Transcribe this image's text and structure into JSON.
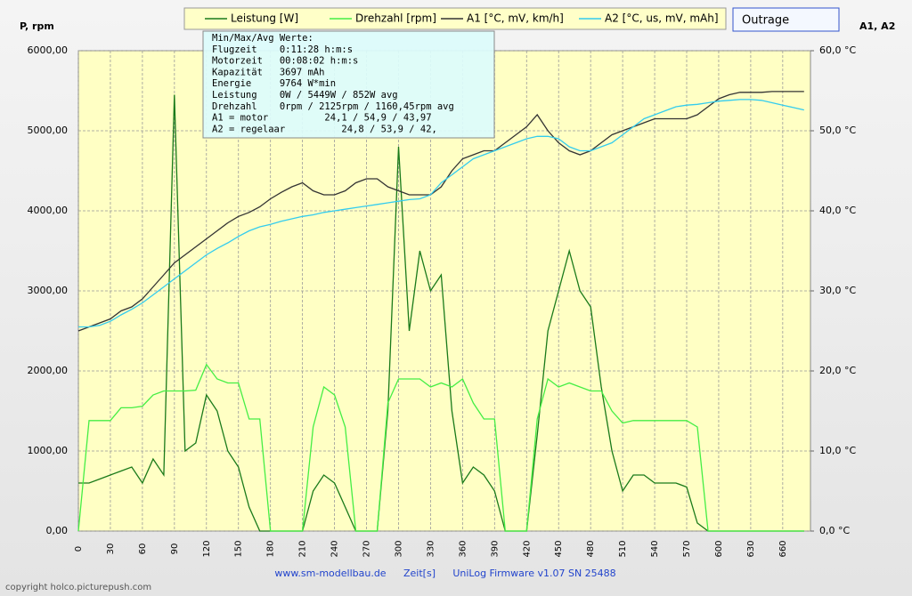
{
  "chart_data": {
    "type": "line",
    "y_axis_label": "P, rpm",
    "y2_axis_label": "A1, A2",
    "x_axis_label": "Zeit[s]",
    "badge": "Outrage",
    "footer_left": "www.sm-modellbau.de",
    "footer_right": "UniLog Firmware v1.07 SN 25488",
    "copyright": "copyright holco.picturepush.com",
    "info_box": [
      "Min/Max/Avg Werte:",
      "Flugzeit    0:11:28 h:m:s",
      "Motorzeit   00:08:02 h:m:s",
      "Kapazität   3697 mAh",
      "Energie     9764 W*min",
      "Leistung    0W / 5449W / 852W avg",
      "Drehzahl    0rpm / 2125rpm / 1160,45rpm avg",
      "A1 = motor          24,1 / 54,9 / 43,97",
      "A2 = regelaar          24,8 / 53,9 / 42,"
    ],
    "grid": true,
    "xlim": [
      0,
      686
    ],
    "xticks": [
      0,
      30,
      60,
      90,
      120,
      150,
      180,
      210,
      240,
      270,
      300,
      330,
      360,
      390,
      420,
      450,
      480,
      510,
      540,
      570,
      600,
      630,
      660
    ],
    "ylim": [
      0,
      6000
    ],
    "yticks": [
      {
        "value": 0,
        "label": "0,00"
      },
      {
        "value": 1000,
        "label": "1000,00"
      },
      {
        "value": 2000,
        "label": "2000,00"
      },
      {
        "value": 3000,
        "label": "3000,00"
      },
      {
        "value": 4000,
        "label": "4000,00"
      },
      {
        "value": 5000,
        "label": "5000,00"
      },
      {
        "value": 6000,
        "label": "6000,00"
      }
    ],
    "y2lim": [
      0,
      60
    ],
    "y2ticks": [
      {
        "value": 0,
        "label": "0,0 °C"
      },
      {
        "value": 10,
        "label": "10,0 °C"
      },
      {
        "value": 20,
        "label": "20,0 °C"
      },
      {
        "value": 30,
        "label": "30,0 °C"
      },
      {
        "value": 40,
        "label": "40,0 °C"
      },
      {
        "value": 50,
        "label": "50,0 °C"
      },
      {
        "value": 60,
        "label": "60,0 °C"
      }
    ],
    "x": [
      0,
      10,
      20,
      30,
      40,
      50,
      60,
      70,
      80,
      90,
      100,
      110,
      120,
      130,
      140,
      150,
      160,
      170,
      180,
      190,
      200,
      210,
      220,
      230,
      240,
      250,
      260,
      270,
      280,
      290,
      300,
      310,
      320,
      330,
      340,
      350,
      360,
      370,
      380,
      390,
      400,
      410,
      420,
      430,
      440,
      450,
      460,
      470,
      480,
      490,
      500,
      510,
      520,
      530,
      540,
      550,
      560,
      570,
      580,
      590,
      600,
      610,
      620,
      630,
      640,
      650,
      660,
      670,
      680
    ],
    "series": [
      {
        "name": "Leistung [W]",
        "color": "#1a7a1a",
        "values": [
          600,
          600,
          650,
          700,
          750,
          800,
          600,
          900,
          700,
          5450,
          1000,
          1100,
          1700,
          1500,
          1000,
          800,
          300,
          0,
          0,
          0,
          0,
          0,
          500,
          700,
          600,
          300,
          0,
          0,
          0,
          1500,
          4800,
          2500,
          3500,
          3000,
          3200,
          1500,
          600,
          800,
          700,
          500,
          0,
          0,
          0,
          1200,
          2500,
          3000,
          3500,
          3000,
          2800,
          1800,
          1000,
          500,
          700,
          700,
          600,
          600,
          600,
          550,
          100,
          0,
          0,
          0,
          0,
          0,
          0,
          0,
          0,
          0,
          0
        ]
      },
      {
        "name": "Drehzahl [rpm]",
        "color": "#44ee44",
        "values": [
          0,
          1380,
          1380,
          1380,
          1540,
          1540,
          1560,
          1700,
          1750,
          1750,
          1750,
          1760,
          2080,
          1900,
          1850,
          1850,
          1400,
          1400,
          0,
          0,
          0,
          0,
          1300,
          1800,
          1700,
          1300,
          0,
          0,
          0,
          1600,
          1900,
          1900,
          1900,
          1800,
          1850,
          1800,
          1900,
          1600,
          1400,
          1400,
          0,
          0,
          0,
          1400,
          1900,
          1800,
          1850,
          1800,
          1750,
          1750,
          1500,
          1350,
          1380,
          1380,
          1380,
          1380,
          1380,
          1380,
          1300,
          0,
          0,
          0,
          0,
          0,
          0,
          0,
          0,
          0,
          0
        ]
      },
      {
        "name": "A1 [°C, mV, km/h]",
        "color": "#333333",
        "axis": "y2",
        "values": [
          25,
          25.5,
          26,
          26.5,
          27.5,
          28,
          29,
          30.5,
          32,
          33.5,
          34.5,
          35.5,
          36.5,
          37.5,
          38.5,
          39.3,
          39.8,
          40.5,
          41.5,
          42.3,
          43,
          43.5,
          42.5,
          42,
          42,
          42.5,
          43.5,
          44,
          44,
          43,
          42.5,
          42,
          42,
          42,
          43,
          45,
          46.5,
          47,
          47.5,
          47.5,
          48.5,
          49.5,
          50.5,
          52,
          50,
          48.5,
          47.5,
          47,
          47.5,
          48.5,
          49.5,
          50,
          50.5,
          51,
          51.5,
          51.5,
          51.5,
          51.5,
          52,
          53,
          54,
          54.5,
          54.8,
          54.8,
          54.8,
          54.9,
          54.9,
          54.9,
          54.9
        ]
      },
      {
        "name": "A2 [°C, us, mV, mAh]",
        "color": "#33ccee",
        "axis": "y2",
        "values": [
          25.5,
          25.5,
          25.7,
          26.2,
          27,
          27.7,
          28.5,
          29.5,
          30.5,
          31.5,
          32.5,
          33.5,
          34.5,
          35.3,
          36,
          36.8,
          37.5,
          38,
          38.3,
          38.7,
          39,
          39.3,
          39.5,
          39.8,
          40,
          40.2,
          40.4,
          40.6,
          40.8,
          41,
          41.2,
          41.4,
          41.5,
          42,
          43.5,
          44.5,
          45.5,
          46.5,
          47,
          47.5,
          48,
          48.5,
          49,
          49.3,
          49.3,
          49,
          48,
          47.5,
          47.5,
          48,
          48.5,
          49.5,
          50.5,
          51.5,
          52,
          52.5,
          53,
          53.2,
          53.3,
          53.5,
          53.7,
          53.8,
          53.9,
          53.9,
          53.8,
          53.5,
          53.2,
          52.9,
          52.6
        ]
      }
    ]
  }
}
